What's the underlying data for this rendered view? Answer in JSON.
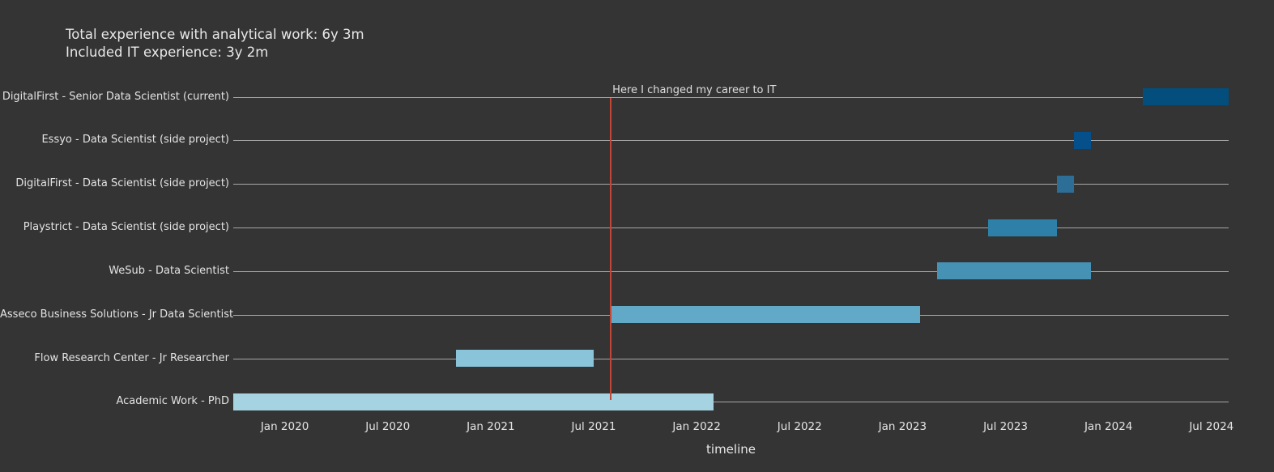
{
  "header": {
    "line1": "Total experience with analytical work: 6y 3m",
    "line2": "Included IT experience: 3y 2m"
  },
  "colors": {
    "background": "#343434",
    "row_line": "#a6a6a6",
    "text": "#e3e3e3",
    "event_line": "#c24736"
  },
  "chart_data": {
    "type": "gantt",
    "title": "Total experience with analytical work: 6y 3m / Included IT experience: 3y 2m",
    "xlabel": "timeline",
    "x_range": [
      "2019-10",
      "2024-08"
    ],
    "grid": "horizontal-row-lines",
    "legend": "none",
    "x_ticks": [
      {
        "label": "Jan 2020",
        "date": "2020-01"
      },
      {
        "label": "Jul 2020",
        "date": "2020-07"
      },
      {
        "label": "Jan 2021",
        "date": "2021-01"
      },
      {
        "label": "Jul 2021",
        "date": "2021-07"
      },
      {
        "label": "Jan 2022",
        "date": "2022-01"
      },
      {
        "label": "Jul 2022",
        "date": "2022-07"
      },
      {
        "label": "Jan 2023",
        "date": "2023-01"
      },
      {
        "label": "Jul 2023",
        "date": "2023-07"
      },
      {
        "label": "Jan 2024",
        "date": "2024-01"
      },
      {
        "label": "Jul 2024",
        "date": "2024-07"
      }
    ],
    "annotation": {
      "text": "Here I changed my career to IT",
      "date": "2021-08"
    },
    "tasks": [
      {
        "label": "DigitalFirst - Senior Data Scientist (current)",
        "start": "2024-03",
        "end": "2024-08",
        "color": "#034e7c"
      },
      {
        "label": "Essyo - Data Scientist (side project)",
        "start": "2023-11",
        "end": "2023-12",
        "color": "#05508a"
      },
      {
        "label": "DigitalFirst - Data Scientist (side project)",
        "start": "2023-10",
        "end": "2023-11",
        "color": "#2c6e96"
      },
      {
        "label": "Playstrict - Data Scientist (side project)",
        "start": "2023-06",
        "end": "2023-10",
        "color": "#2e80a8"
      },
      {
        "label": "WeSub - Data Scientist",
        "start": "2023-03",
        "end": "2023-12",
        "color": "#4692b4"
      },
      {
        "label": "Asseco Business Solutions - Jr Data Scientist",
        "start": "2021-08",
        "end": "2023-02",
        "color": "#61a9c6"
      },
      {
        "label": "Flow Research Center - Jr Researcher",
        "start": "2020-11",
        "end": "2021-07",
        "color": "#8ac4da"
      },
      {
        "label": "Academic Work - PhD",
        "start": "2019-10",
        "end": "2022-02",
        "color": "#a5d3e2"
      }
    ]
  }
}
